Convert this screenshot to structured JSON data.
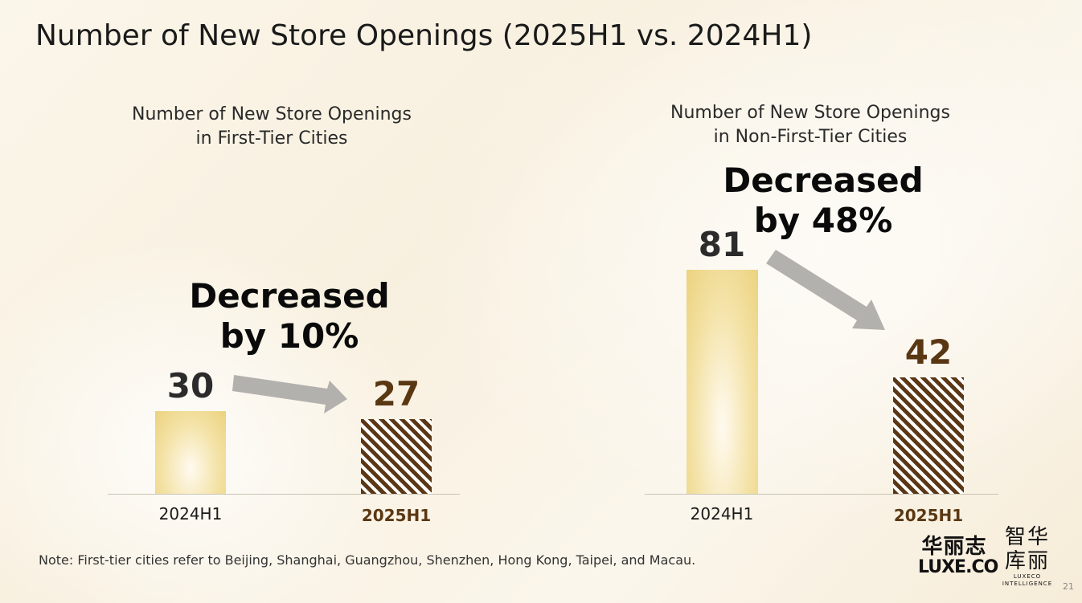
{
  "title": "Number of New Store Openings (2025H1 vs. 2024H1)",
  "chart_data": [
    {
      "type": "bar",
      "title": "Number of New Store Openings in First-Tier Cities",
      "title_lines": [
        "Number of New Store Openings",
        "in First-Tier Cities"
      ],
      "categories": [
        "2024H1",
        "2025H1"
      ],
      "values": [
        30,
        27
      ],
      "value_labels": [
        "30",
        "27"
      ],
      "ylim": [
        0,
        90
      ],
      "grid": false,
      "callout_lines": [
        "Decreased",
        "by 10%"
      ]
    },
    {
      "type": "bar",
      "title": "Number of New Store Openings in Non-First-Tier Cities",
      "title_lines": [
        "Number of New Store Openings",
        "in Non-First-Tier Cities"
      ],
      "categories": [
        "2024H1",
        "2025H1"
      ],
      "values": [
        81,
        42
      ],
      "value_labels": [
        "81",
        "42"
      ],
      "ylim": [
        0,
        90
      ],
      "grid": false,
      "callout_lines": [
        "Decreased",
        "by 48%"
      ]
    }
  ],
  "note": "Note: First-tier cities refer to Beijing, Shanghai, Guangzhou, Shenzhen, Hong Kong, Taipei, and Macau.",
  "logos": {
    "luxeco_cn": "华丽志",
    "luxeco_en": "LUXE.CO",
    "intel_cn_line1": "智华",
    "intel_cn_line2": "库丽",
    "intel_en_line1": "LUXECO",
    "intel_en_line2": "INTELLIGENCE"
  },
  "page_number": "21",
  "colors": {
    "prev_bar": "#ecd27e",
    "cur_bar_stripe": "#5b3715",
    "cur_value_text": "#5a3713",
    "arrow": "#b3b1ad"
  }
}
